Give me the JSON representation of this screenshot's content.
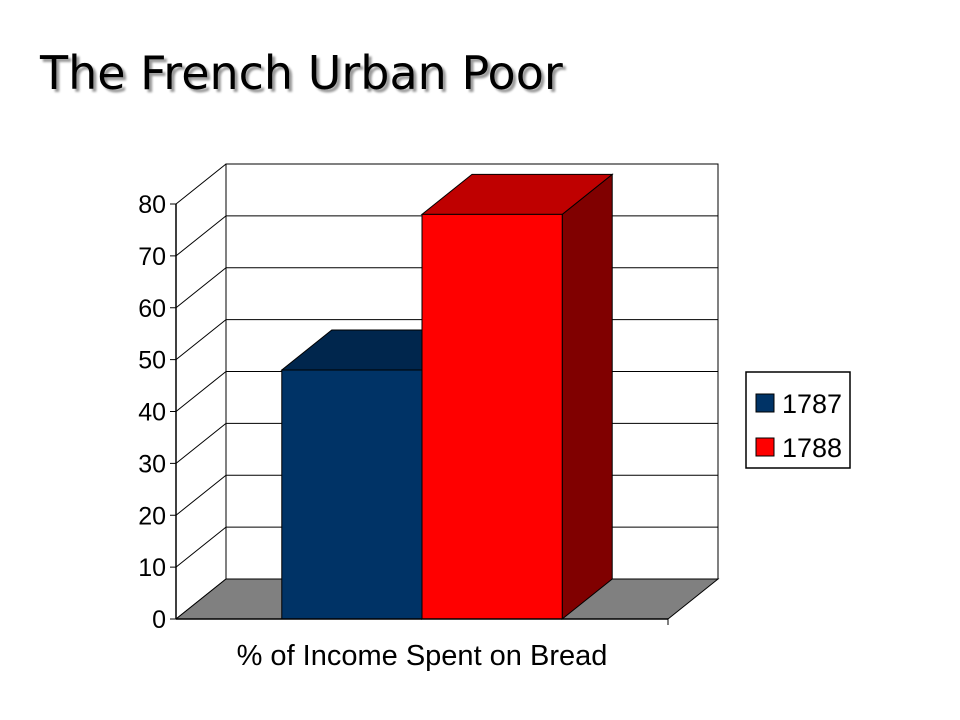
{
  "slide": {
    "title": "The French Urban Poor"
  },
  "chart_data": {
    "type": "bar",
    "categories": [
      "% of Income Spent on Bread"
    ],
    "series": [
      {
        "name": "1787",
        "values": [
          48
        ],
        "color": "#003366"
      },
      {
        "name": "1788",
        "values": [
          78
        ],
        "color": "#ff0000"
      }
    ],
    "xlabel": "% of Income Spent on Bread",
    "ylabel": "",
    "ylim": [
      0,
      80
    ],
    "yticks": [
      0,
      10,
      20,
      30,
      40,
      50,
      60,
      70,
      80
    ],
    "grid": true,
    "three_d": true,
    "legend": "right",
    "floor_color": "#808080"
  }
}
